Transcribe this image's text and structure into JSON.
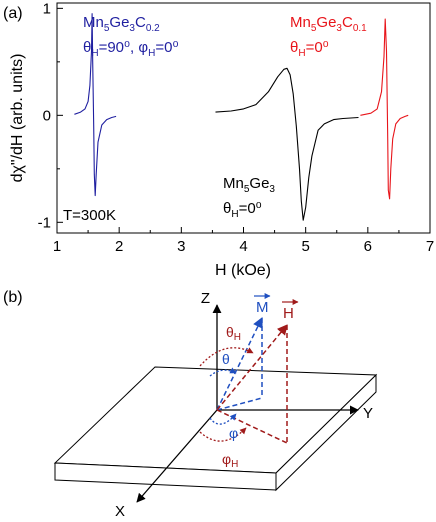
{
  "panel_labels": {
    "a": "(a)",
    "b": "(b)"
  },
  "chart_data": {
    "type": "line",
    "xlabel": "H (kOe)",
    "ylabel": "dχ\"/dH (arb. units)",
    "xlim": [
      1,
      7
    ],
    "ylim": [
      -1.1,
      1.05
    ],
    "x_ticks": [
      1,
      2,
      3,
      4,
      5,
      6,
      7
    ],
    "y_ticks": [
      -1,
      0,
      1
    ],
    "annotation": "T=300K",
    "series": [
      {
        "color": "#1f1fa0",
        "label_lines": [
          "Mn5Ge3C0.2",
          "θH=90⁰, φH=0⁰"
        ],
        "x": [
          1.28,
          1.38,
          1.45,
          1.5,
          1.53,
          1.555,
          1.565,
          1.575,
          1.59,
          1.6,
          1.615,
          1.63,
          1.66,
          1.72,
          1.8,
          1.88,
          1.95
        ],
        "y": [
          0.01,
          0.03,
          0.06,
          0.13,
          0.28,
          0.6,
          0.95,
          0.5,
          -0.1,
          -0.55,
          -0.75,
          -0.55,
          -0.25,
          -0.09,
          -0.04,
          -0.02,
          -0.01
        ]
      },
      {
        "color": "#000000",
        "label_lines": [
          "Mn5Ge3",
          "θH=0⁰"
        ],
        "x": [
          3.55,
          3.8,
          4.0,
          4.2,
          4.4,
          4.55,
          4.65,
          4.7,
          4.75,
          4.8,
          4.85,
          4.9,
          4.93,
          4.96,
          5.0,
          5.05,
          5.1,
          5.2,
          5.3,
          5.45,
          5.6,
          5.85
        ],
        "y": [
          0.03,
          0.04,
          0.06,
          0.1,
          0.22,
          0.36,
          0.43,
          0.44,
          0.38,
          0.2,
          -0.1,
          -0.5,
          -0.8,
          -0.98,
          -0.86,
          -0.58,
          -0.38,
          -0.14,
          -0.08,
          -0.04,
          -0.03,
          -0.02
        ]
      },
      {
        "color": "#e8141a",
        "label_lines": [
          "Mn5Ge3C0.1",
          "θH=0⁰"
        ],
        "x": [
          5.88,
          6.05,
          6.15,
          6.22,
          6.26,
          6.28,
          6.3,
          6.32,
          6.33,
          6.35,
          6.37,
          6.4,
          6.45,
          6.52,
          6.6,
          6.65
        ],
        "y": [
          0.0,
          0.02,
          0.06,
          0.22,
          0.55,
          0.9,
          0.6,
          -0.2,
          -0.7,
          -0.78,
          -0.5,
          -0.22,
          -0.08,
          -0.03,
          -0.01,
          0.0
        ]
      }
    ]
  },
  "diagram": {
    "axis_labels": {
      "z": "Z",
      "y": "Y",
      "x": "X"
    },
    "vector_M": {
      "label": "M",
      "color": "#1f4fc0"
    },
    "vector_H": {
      "label": "H",
      "color": "#a01a1a"
    },
    "angles": {
      "theta_H": "θH",
      "theta": "θ",
      "phi": "φ",
      "phi_H": "φH"
    }
  }
}
